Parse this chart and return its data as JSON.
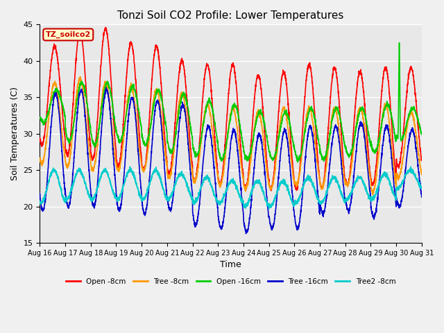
{
  "title": "Tonzi Soil CO2 Profile: Lower Temperatures",
  "xlabel": "Time",
  "ylabel": "Soil Temperatures (C)",
  "ylim": [
    15,
    45
  ],
  "xtick_labels": [
    "Aug 16",
    "Aug 17",
    "Aug 18",
    "Aug 19",
    "Aug 20",
    "Aug 21",
    "Aug 22",
    "Aug 23",
    "Aug 24",
    "Aug 25",
    "Aug 26",
    "Aug 27",
    "Aug 28",
    "Aug 29",
    "Aug 30",
    "Aug 31"
  ],
  "ytick_values": [
    15,
    20,
    25,
    30,
    35,
    40,
    45
  ],
  "legend_entries": [
    "Open -8cm",
    "Tree -8cm",
    "Open -16cm",
    "Tree -16cm",
    "Tree2 -8cm"
  ],
  "line_colors": [
    "#ff0000",
    "#ff9900",
    "#00cc00",
    "#0000cc",
    "#00cccc"
  ],
  "watermark_text": "TZ_soilco2",
  "watermark_bg": "#ffffcc",
  "watermark_fg": "#cc0000",
  "plot_bg_color": "#e8e8e8",
  "grid_color": "#ffffff",
  "n_days": 15,
  "pts_per_day": 200,
  "open8_peaks": [
    42.0,
    44.0,
    44.5,
    42.5,
    42.0,
    40.0,
    39.5,
    39.5,
    38.0,
    38.5,
    39.5,
    39.0,
    38.5,
    39.0,
    39.0
  ],
  "open8_mins": [
    28.5,
    27.0,
    26.5,
    25.5,
    25.0,
    24.5,
    23.5,
    23.0,
    22.5,
    22.5,
    22.5,
    22.5,
    23.0,
    23.0,
    25.5
  ],
  "tree8_peaks": [
    37.0,
    37.5,
    37.0,
    36.5,
    36.0,
    35.5,
    34.0,
    33.5,
    33.0,
    33.5,
    33.5,
    33.5,
    33.5,
    34.0,
    33.0
  ],
  "tree8_mins": [
    26.0,
    25.5,
    25.0,
    25.0,
    25.0,
    24.0,
    23.5,
    23.0,
    22.5,
    22.5,
    23.0,
    22.5,
    23.0,
    22.0,
    24.0
  ],
  "open16_peaks": [
    36.0,
    37.0,
    37.0,
    36.5,
    36.0,
    35.5,
    34.5,
    34.0,
    33.0,
    33.0,
    33.5,
    33.5,
    33.5,
    34.0,
    33.5
  ],
  "open16_mins": [
    31.5,
    29.0,
    28.5,
    29.0,
    28.5,
    27.5,
    27.0,
    26.5,
    26.5,
    26.5,
    26.5,
    26.5,
    27.0,
    27.5,
    29.0
  ],
  "tree16_peaks": [
    35.5,
    36.0,
    36.0,
    35.0,
    34.5,
    34.0,
    31.0,
    30.5,
    30.0,
    30.5,
    31.0,
    31.0,
    31.5,
    31.0,
    30.5
  ],
  "tree16_mins": [
    19.5,
    20.0,
    20.0,
    19.5,
    19.0,
    19.5,
    17.5,
    17.0,
    16.5,
    17.0,
    17.0,
    19.0,
    19.5,
    18.5,
    20.0
  ],
  "tree28_peaks": [
    25.0,
    25.0,
    25.0,
    25.0,
    25.0,
    24.5,
    24.0,
    23.5,
    23.5,
    23.5,
    24.0,
    24.0,
    24.0,
    24.5,
    25.0
  ],
  "tree28_mins": [
    20.5,
    21.0,
    21.0,
    21.0,
    21.0,
    21.0,
    20.5,
    20.5,
    20.0,
    20.0,
    20.5,
    20.5,
    21.0,
    21.0,
    22.5
  ],
  "open16_spike_day": 14,
  "open16_spike_val": 42.5
}
